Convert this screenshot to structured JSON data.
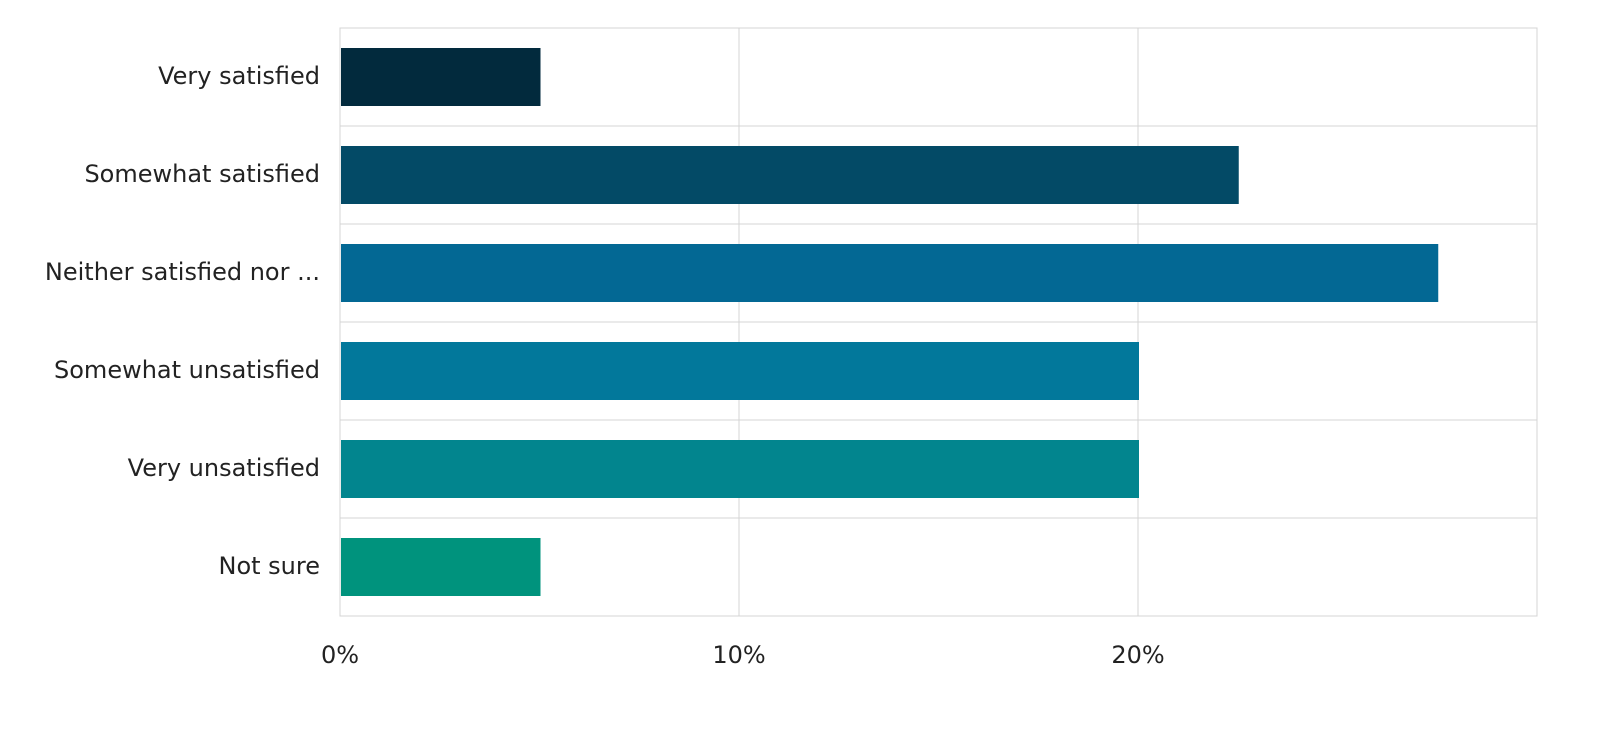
{
  "chart_data": {
    "type": "hbar",
    "categories": [
      "Very satisfied",
      "Somewhat satisfied",
      "Neither satisfied nor ...",
      "Somewhat unsatisfied",
      "Very unsatisfied",
      "Not sure"
    ],
    "values": [
      5,
      22.5,
      27.5,
      20,
      20,
      5
    ],
    "colors": [
      "#022a3d",
      "#034a66",
      "#036894",
      "#02789b",
      "#02858e",
      "#00937d"
    ],
    "xlim": [
      0,
      30
    ],
    "xticks": [
      {
        "value": 0,
        "label": "0%"
      },
      {
        "value": 10,
        "label": "10%"
      },
      {
        "value": 20,
        "label": "20%"
      }
    ],
    "grid": true
  }
}
